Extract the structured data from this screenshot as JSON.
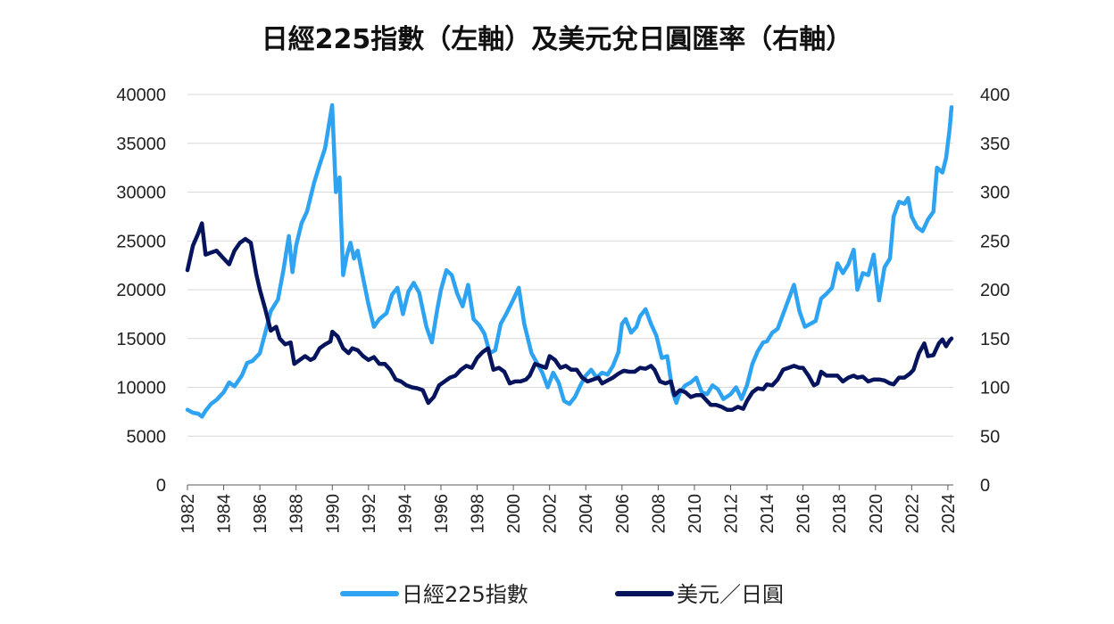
{
  "chart_data": {
    "type": "line",
    "title": "日經225指數（左軸）及美元兌日圓匯率（右軸）",
    "xlim": [
      1982,
      2024.3
    ],
    "x_ticks": [
      "1982",
      "1984",
      "1986",
      "1988",
      "1990",
      "1992",
      "1994",
      "1996",
      "1998",
      "2000",
      "2002",
      "2004",
      "2006",
      "2008",
      "2010",
      "2012",
      "2014",
      "2016",
      "2018",
      "2020",
      "2022",
      "2024"
    ],
    "y_left": {
      "min": 0,
      "max": 40000,
      "ticks": [
        "0",
        "5000",
        "10000",
        "15000",
        "20000",
        "25000",
        "30000",
        "35000",
        "40000"
      ]
    },
    "y_right": {
      "min": 0,
      "max": 400,
      "ticks": [
        "0",
        "50",
        "100",
        "150",
        "200",
        "250",
        "300",
        "350",
        "400"
      ]
    },
    "grid": "horizontal",
    "legend_position": "bottom",
    "series": [
      {
        "name": "日經225指數",
        "axis": "left",
        "color": "#2ea3f2",
        "points": [
          [
            1982.0,
            7700
          ],
          [
            1982.3,
            7400
          ],
          [
            1982.6,
            7300
          ],
          [
            1982.8,
            7000
          ],
          [
            1983.0,
            7600
          ],
          [
            1983.3,
            8300
          ],
          [
            1983.6,
            8700
          ],
          [
            1984.0,
            9500
          ],
          [
            1984.3,
            10500
          ],
          [
            1984.6,
            10100
          ],
          [
            1985.0,
            11200
          ],
          [
            1985.3,
            12500
          ],
          [
            1985.6,
            12700
          ],
          [
            1986.0,
            13500
          ],
          [
            1986.3,
            15600
          ],
          [
            1986.6,
            17800
          ],
          [
            1987.0,
            19000
          ],
          [
            1987.3,
            22000
          ],
          [
            1987.6,
            25500
          ],
          [
            1987.8,
            21800
          ],
          [
            1988.0,
            24500
          ],
          [
            1988.3,
            26800
          ],
          [
            1988.6,
            28000
          ],
          [
            1989.0,
            31000
          ],
          [
            1989.3,
            32800
          ],
          [
            1989.6,
            34500
          ],
          [
            1989.99,
            38900
          ],
          [
            1990.2,
            30000
          ],
          [
            1990.4,
            31500
          ],
          [
            1990.6,
            21500
          ],
          [
            1990.8,
            23500
          ],
          [
            1991.0,
            24800
          ],
          [
            1991.2,
            23200
          ],
          [
            1991.4,
            24000
          ],
          [
            1991.7,
            21200
          ],
          [
            1992.0,
            18500
          ],
          [
            1992.3,
            16200
          ],
          [
            1992.6,
            17000
          ],
          [
            1993.0,
            17600
          ],
          [
            1993.3,
            19500
          ],
          [
            1993.6,
            20200
          ],
          [
            1993.9,
            17500
          ],
          [
            1994.2,
            19800
          ],
          [
            1994.5,
            20700
          ],
          [
            1994.8,
            19700
          ],
          [
            1995.2,
            16200
          ],
          [
            1995.5,
            14600
          ],
          [
            1995.8,
            18000
          ],
          [
            1996.0,
            20000
          ],
          [
            1996.3,
            22000
          ],
          [
            1996.6,
            21500
          ],
          [
            1996.9,
            19600
          ],
          [
            1997.2,
            18300
          ],
          [
            1997.5,
            20500
          ],
          [
            1997.8,
            17000
          ],
          [
            1998.1,
            16400
          ],
          [
            1998.4,
            15500
          ],
          [
            1998.7,
            13500
          ],
          [
            1999.0,
            13800
          ],
          [
            1999.3,
            16500
          ],
          [
            1999.6,
            17500
          ],
          [
            2000.0,
            19000
          ],
          [
            2000.3,
            20200
          ],
          [
            2000.6,
            16500
          ],
          [
            2001.0,
            13500
          ],
          [
            2001.3,
            12500
          ],
          [
            2001.6,
            11500
          ],
          [
            2001.9,
            10000
          ],
          [
            2002.2,
            11500
          ],
          [
            2002.5,
            10500
          ],
          [
            2002.8,
            8600
          ],
          [
            2003.1,
            8300
          ],
          [
            2003.4,
            9000
          ],
          [
            2003.7,
            10200
          ],
          [
            2004.0,
            11200
          ],
          [
            2004.3,
            11800
          ],
          [
            2004.6,
            11000
          ],
          [
            2004.9,
            11500
          ],
          [
            2005.2,
            11300
          ],
          [
            2005.5,
            12200
          ],
          [
            2005.8,
            13600
          ],
          [
            2006.0,
            16500
          ],
          [
            2006.2,
            17000
          ],
          [
            2006.5,
            15600
          ],
          [
            2006.8,
            16200
          ],
          [
            2007.0,
            17300
          ],
          [
            2007.3,
            18000
          ],
          [
            2007.6,
            16500
          ],
          [
            2007.9,
            15300
          ],
          [
            2008.2,
            13000
          ],
          [
            2008.5,
            13200
          ],
          [
            2008.8,
            9500
          ],
          [
            2009.0,
            8400
          ],
          [
            2009.2,
            9500
          ],
          [
            2009.5,
            10200
          ],
          [
            2009.8,
            10500
          ],
          [
            2010.1,
            11000
          ],
          [
            2010.4,
            9500
          ],
          [
            2010.7,
            9300
          ],
          [
            2011.0,
            10200
          ],
          [
            2011.3,
            9800
          ],
          [
            2011.6,
            8800
          ],
          [
            2012.0,
            9300
          ],
          [
            2012.3,
            10000
          ],
          [
            2012.6,
            8800
          ],
          [
            2012.9,
            10200
          ],
          [
            2013.2,
            12400
          ],
          [
            2013.5,
            13700
          ],
          [
            2013.8,
            14600
          ],
          [
            2014.0,
            14700
          ],
          [
            2014.3,
            15600
          ],
          [
            2014.6,
            16000
          ],
          [
            2014.9,
            17500
          ],
          [
            2015.2,
            19000
          ],
          [
            2015.5,
            20500
          ],
          [
            2015.8,
            17800
          ],
          [
            2016.1,
            16200
          ],
          [
            2016.4,
            16500
          ],
          [
            2016.7,
            16800
          ],
          [
            2017.0,
            19100
          ],
          [
            2017.3,
            19600
          ],
          [
            2017.6,
            20200
          ],
          [
            2017.9,
            22700
          ],
          [
            2018.2,
            21700
          ],
          [
            2018.5,
            22600
          ],
          [
            2018.8,
            24100
          ],
          [
            2019.0,
            20000
          ],
          [
            2019.3,
            21700
          ],
          [
            2019.6,
            21500
          ],
          [
            2019.9,
            23600
          ],
          [
            2020.2,
            18900
          ],
          [
            2020.5,
            22300
          ],
          [
            2020.8,
            23200
          ],
          [
            2021.0,
            27500
          ],
          [
            2021.3,
            29000
          ],
          [
            2021.6,
            28800
          ],
          [
            2021.8,
            29400
          ],
          [
            2022.0,
            27500
          ],
          [
            2022.3,
            26400
          ],
          [
            2022.6,
            26000
          ],
          [
            2022.9,
            27200
          ],
          [
            2023.2,
            28000
          ],
          [
            2023.4,
            32500
          ],
          [
            2023.7,
            32000
          ],
          [
            2023.9,
            33500
          ],
          [
            2024.1,
            36500
          ],
          [
            2024.2,
            38700
          ]
        ]
      },
      {
        "name": "美元／日圓",
        "axis": "right",
        "color": "#06145e",
        "points": [
          [
            1982.0,
            220
          ],
          [
            1982.3,
            245
          ],
          [
            1982.6,
            258
          ],
          [
            1982.8,
            268
          ],
          [
            1983.0,
            236
          ],
          [
            1983.3,
            238
          ],
          [
            1983.6,
            240
          ],
          [
            1984.0,
            232
          ],
          [
            1984.3,
            226
          ],
          [
            1984.6,
            240
          ],
          [
            1984.9,
            248
          ],
          [
            1985.2,
            252
          ],
          [
            1985.5,
            248
          ],
          [
            1985.8,
            216
          ],
          [
            1986.0,
            200
          ],
          [
            1986.3,
            180
          ],
          [
            1986.6,
            158
          ],
          [
            1986.9,
            162
          ],
          [
            1987.1,
            150
          ],
          [
            1987.4,
            144
          ],
          [
            1987.7,
            146
          ],
          [
            1987.9,
            124
          ],
          [
            1988.2,
            128
          ],
          [
            1988.5,
            132
          ],
          [
            1988.8,
            128
          ],
          [
            1989.0,
            130
          ],
          [
            1989.3,
            140
          ],
          [
            1989.6,
            144
          ],
          [
            1989.9,
            147
          ],
          [
            1990.0,
            157
          ],
          [
            1990.3,
            152
          ],
          [
            1990.6,
            140
          ],
          [
            1990.9,
            135
          ],
          [
            1991.1,
            140
          ],
          [
            1991.4,
            138
          ],
          [
            1991.7,
            132
          ],
          [
            1992.0,
            128
          ],
          [
            1992.3,
            131
          ],
          [
            1992.6,
            124
          ],
          [
            1992.9,
            124
          ],
          [
            1993.2,
            118
          ],
          [
            1993.5,
            108
          ],
          [
            1993.8,
            106
          ],
          [
            1994.1,
            102
          ],
          [
            1994.4,
            100
          ],
          [
            1994.7,
            99
          ],
          [
            1995.0,
            97
          ],
          [
            1995.3,
            84
          ],
          [
            1995.6,
            90
          ],
          [
            1995.9,
            102
          ],
          [
            1996.2,
            106
          ],
          [
            1996.5,
            110
          ],
          [
            1996.8,
            112
          ],
          [
            1997.1,
            118
          ],
          [
            1997.4,
            122
          ],
          [
            1997.7,
            120
          ],
          [
            1998.0,
            130
          ],
          [
            1998.3,
            136
          ],
          [
            1998.6,
            140
          ],
          [
            1998.9,
            118
          ],
          [
            1999.2,
            120
          ],
          [
            1999.5,
            116
          ],
          [
            1999.8,
            104
          ],
          [
            2000.1,
            106
          ],
          [
            2000.4,
            106
          ],
          [
            2000.7,
            108
          ],
          [
            2000.9,
            112
          ],
          [
            2001.2,
            124
          ],
          [
            2001.5,
            122
          ],
          [
            2001.8,
            120
          ],
          [
            2002.0,
            132
          ],
          [
            2002.3,
            128
          ],
          [
            2002.6,
            120
          ],
          [
            2002.9,
            122
          ],
          [
            2003.2,
            118
          ],
          [
            2003.5,
            118
          ],
          [
            2003.8,
            110
          ],
          [
            2004.1,
            106
          ],
          [
            2004.4,
            108
          ],
          [
            2004.7,
            110
          ],
          [
            2004.9,
            104
          ],
          [
            2005.2,
            107
          ],
          [
            2005.5,
            110
          ],
          [
            2005.8,
            114
          ],
          [
            2006.1,
            117
          ],
          [
            2006.4,
            116
          ],
          [
            2006.7,
            116
          ],
          [
            2007.0,
            120
          ],
          [
            2007.3,
            119
          ],
          [
            2007.6,
            122
          ],
          [
            2007.8,
            118
          ],
          [
            2008.1,
            106
          ],
          [
            2008.4,
            104
          ],
          [
            2008.7,
            106
          ],
          [
            2008.9,
            92
          ],
          [
            2009.2,
            97
          ],
          [
            2009.5,
            95
          ],
          [
            2009.8,
            90
          ],
          [
            2010.1,
            92
          ],
          [
            2010.4,
            92
          ],
          [
            2010.7,
            86
          ],
          [
            2010.9,
            82
          ],
          [
            2011.2,
            82
          ],
          [
            2011.5,
            80
          ],
          [
            2011.8,
            77
          ],
          [
            2012.1,
            77
          ],
          [
            2012.4,
            80
          ],
          [
            2012.7,
            78
          ],
          [
            2012.9,
            86
          ],
          [
            2013.2,
            95
          ],
          [
            2013.5,
            99
          ],
          [
            2013.8,
            98
          ],
          [
            2014.0,
            103
          ],
          [
            2014.3,
            102
          ],
          [
            2014.6,
            108
          ],
          [
            2014.9,
            118
          ],
          [
            2015.2,
            120
          ],
          [
            2015.5,
            122
          ],
          [
            2015.8,
            120
          ],
          [
            2016.0,
            120
          ],
          [
            2016.3,
            112
          ],
          [
            2016.6,
            102
          ],
          [
            2016.8,
            104
          ],
          [
            2017.0,
            116
          ],
          [
            2017.3,
            112
          ],
          [
            2017.6,
            112
          ],
          [
            2017.9,
            112
          ],
          [
            2018.2,
            106
          ],
          [
            2018.5,
            110
          ],
          [
            2018.8,
            112
          ],
          [
            2019.0,
            110
          ],
          [
            2019.3,
            111
          ],
          [
            2019.6,
            106
          ],
          [
            2019.9,
            108
          ],
          [
            2020.2,
            108
          ],
          [
            2020.5,
            107
          ],
          [
            2020.8,
            104
          ],
          [
            2021.0,
            103
          ],
          [
            2021.3,
            110
          ],
          [
            2021.6,
            110
          ],
          [
            2021.9,
            114
          ],
          [
            2022.1,
            118
          ],
          [
            2022.4,
            135
          ],
          [
            2022.7,
            145
          ],
          [
            2022.9,
            132
          ],
          [
            2023.2,
            133
          ],
          [
            2023.5,
            145
          ],
          [
            2023.7,
            149
          ],
          [
            2023.9,
            142
          ],
          [
            2024.1,
            148
          ],
          [
            2024.2,
            150
          ]
        ]
      }
    ]
  }
}
